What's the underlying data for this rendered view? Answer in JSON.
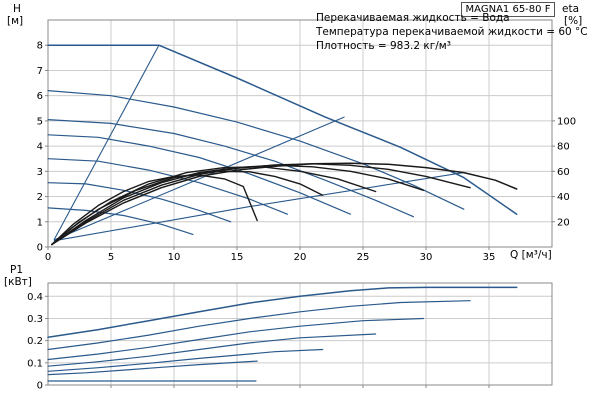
{
  "header": {
    "model_box": "MAGNA1 65-80 F",
    "annotations": [
      "Перекачиваемая жидкость = Вода",
      "Температура перекачиваемой жидкости = 60 °C",
      "Плотность = 983.2 кг/м³"
    ]
  },
  "axes_labels": {
    "h_symbol": "H",
    "h_unit": "[м]",
    "eta_symbol": "eta",
    "eta_unit": "[%]",
    "q_label": "Q [м³/ч]",
    "p1_symbol": "P1",
    "p1_unit": "[кВт]"
  },
  "colors": {
    "curve_blue": "#2a5a8c",
    "curve_black": "#1a1a1a",
    "grid": "#cccccc",
    "axis": "#888888",
    "text": "#000000"
  },
  "chart_data": [
    {
      "id": "qh-chart",
      "type": "line",
      "xlabel": "Q [м³/ч]",
      "ylabel": "H [м]",
      "y2label": "eta [%]",
      "xlim": [
        0,
        40
      ],
      "ylim": [
        0,
        9
      ],
      "grid": true,
      "xticks": [
        {
          "v": 0,
          "label": "0"
        },
        {
          "v": 5,
          "label": "5"
        },
        {
          "v": 10,
          "label": "10"
        },
        {
          "v": 15,
          "label": "15"
        },
        {
          "v": 20,
          "label": "20"
        },
        {
          "v": 25,
          "label": "25"
        },
        {
          "v": 30,
          "label": "30"
        },
        {
          "v": 35,
          "label": "35"
        }
      ],
      "yticks": [
        {
          "v": 0,
          "label": "0"
        },
        {
          "v": 1,
          "label": "1"
        },
        {
          "v": 2,
          "label": "2"
        },
        {
          "v": 3,
          "label": "3"
        },
        {
          "v": 4,
          "label": "4"
        },
        {
          "v": 5,
          "label": "5"
        },
        {
          "v": 6,
          "label": "6"
        },
        {
          "v": 7,
          "label": "7"
        },
        {
          "v": 8,
          "label": "8"
        }
      ],
      "y2ticks": [
        {
          "v": 5,
          "label": "100"
        },
        {
          "v": 4,
          "label": "80"
        },
        {
          "v": 3,
          "label": "60"
        },
        {
          "v": 2,
          "label": "40"
        },
        {
          "v": 1,
          "label": "20"
        }
      ],
      "series": [
        {
          "name": "max-curve",
          "color": "blue",
          "width": 1.5,
          "points": [
            [
              0,
              8
            ],
            [
              8.8,
              8
            ],
            [
              15,
              6.7
            ],
            [
              22,
              5.15
            ],
            [
              28,
              3.95
            ],
            [
              33,
              2.75
            ],
            [
              37.2,
              1.3
            ]
          ]
        },
        {
          "name": "speed-curve-1",
          "color": "blue",
          "width": 1.2,
          "points": [
            [
              0,
              6.2
            ],
            [
              5,
              6.0
            ],
            [
              10,
              5.55
            ],
            [
              15,
              4.95
            ],
            [
              20,
              4.2
            ],
            [
              25,
              3.3
            ],
            [
              29,
              2.45
            ],
            [
              33,
              1.5
            ]
          ]
        },
        {
          "name": "speed-curve-2",
          "color": "blue",
          "width": 1.2,
          "points": [
            [
              0,
              5.05
            ],
            [
              5,
              4.9
            ],
            [
              10,
              4.5
            ],
            [
              14,
              4.0
            ],
            [
              18,
              3.4
            ],
            [
              22,
              2.65
            ],
            [
              26,
              1.85
            ],
            [
              29,
              1.2
            ]
          ]
        },
        {
          "name": "speed-curve-3",
          "color": "blue",
          "width": 1.2,
          "points": [
            [
              0,
              4.45
            ],
            [
              4,
              4.35
            ],
            [
              8,
              4.0
            ],
            [
              12,
              3.55
            ],
            [
              16,
              2.9
            ],
            [
              20,
              2.15
            ],
            [
              24,
              1.3
            ]
          ]
        },
        {
          "name": "speed-curve-4",
          "color": "blue",
          "width": 1.2,
          "points": [
            [
              0,
              3.5
            ],
            [
              4,
              3.4
            ],
            [
              8,
              3.05
            ],
            [
              12,
              2.55
            ],
            [
              16,
              1.9
            ],
            [
              19,
              1.3
            ]
          ]
        },
        {
          "name": "speed-curve-5",
          "color": "blue",
          "width": 1.2,
          "points": [
            [
              0,
              2.55
            ],
            [
              3,
              2.5
            ],
            [
              6,
              2.25
            ],
            [
              9,
              1.9
            ],
            [
              12,
              1.45
            ],
            [
              14.5,
              1.0
            ]
          ]
        },
        {
          "name": "speed-curve-6",
          "color": "blue",
          "width": 1.2,
          "points": [
            [
              0,
              1.55
            ],
            [
              3,
              1.45
            ],
            [
              6,
              1.25
            ],
            [
              9,
              0.9
            ],
            [
              11.5,
              0.5
            ]
          ]
        },
        {
          "name": "rise-line-1",
          "color": "blue",
          "width": 1.1,
          "points": [
            [
              0.5,
              0.3
            ],
            [
              8.8,
              8
            ]
          ]
        },
        {
          "name": "rise-line-2",
          "color": "blue",
          "width": 1.1,
          "points": [
            [
              0.5,
              0.28
            ],
            [
              12,
              2.7
            ],
            [
              23.5,
              5.15
            ]
          ]
        },
        {
          "name": "rise-line-3",
          "color": "blue",
          "width": 1.1,
          "points": [
            [
              0.5,
              0.25
            ],
            [
              16,
              1.6
            ],
            [
              33,
              2.95
            ]
          ]
        },
        {
          "name": "eta-curve-max",
          "color": "black",
          "width": 1.5,
          "points": [
            [
              0.3,
              0.1
            ],
            [
              3,
              0.95
            ],
            [
              6,
              1.75
            ],
            [
              9,
              2.35
            ],
            [
              12,
              2.8
            ],
            [
              15,
              3.05
            ],
            [
              18,
              3.2
            ],
            [
              21,
              3.3
            ],
            [
              24,
              3.32
            ],
            [
              27,
              3.28
            ],
            [
              30,
              3.15
            ],
            [
              33,
              2.95
            ],
            [
              35.5,
              2.65
            ],
            [
              37.2,
              2.3
            ]
          ]
        },
        {
          "name": "eta-curve-2",
          "color": "black",
          "width": 1.4,
          "points": [
            [
              0.3,
              0.1
            ],
            [
              3,
              1.0
            ],
            [
              6,
              1.85
            ],
            [
              9,
              2.45
            ],
            [
              12,
              2.88
            ],
            [
              15,
              3.12
            ],
            [
              18,
              3.25
            ],
            [
              21,
              3.3
            ],
            [
              24,
              3.24
            ],
            [
              27,
              3.08
            ],
            [
              30,
              2.8
            ],
            [
              33.5,
              2.35
            ]
          ]
        },
        {
          "name": "eta-curve-3",
          "color": "black",
          "width": 1.4,
          "points": [
            [
              0.3,
              0.1
            ],
            [
              3,
              1.05
            ],
            [
              6,
              1.95
            ],
            [
              9,
              2.55
            ],
            [
              12,
              2.95
            ],
            [
              15,
              3.15
            ],
            [
              18,
              3.24
            ],
            [
              21,
              3.18
            ],
            [
              24,
              3.0
            ],
            [
              27,
              2.7
            ],
            [
              29.8,
              2.25
            ]
          ]
        },
        {
          "name": "eta-curve-4",
          "color": "black",
          "width": 1.4,
          "points": [
            [
              0.3,
              0.1
            ],
            [
              2.5,
              1.0
            ],
            [
              5,
              1.8
            ],
            [
              8,
              2.5
            ],
            [
              11,
              2.95
            ],
            [
              14,
              3.15
            ],
            [
              17,
              3.18
            ],
            [
              20,
              3.0
            ],
            [
              23,
              2.7
            ],
            [
              26,
              2.2
            ]
          ]
        },
        {
          "name": "eta-curve-5",
          "color": "black",
          "width": 1.4,
          "points": [
            [
              0.3,
              0.1
            ],
            [
              2,
              0.8
            ],
            [
              4,
              1.5
            ],
            [
              7,
              2.25
            ],
            [
              10,
              2.75
            ],
            [
              13,
              3.0
            ],
            [
              16,
              2.98
            ],
            [
              18,
              2.8
            ],
            [
              20,
              2.5
            ],
            [
              21.8,
              2.05
            ]
          ]
        },
        {
          "name": "eta-curve-6",
          "color": "black",
          "width": 1.4,
          "points": [
            [
              0.3,
              0.1
            ],
            [
              2,
              0.9
            ],
            [
              4,
              1.65
            ],
            [
              6,
              2.2
            ],
            [
              8,
              2.6
            ],
            [
              10,
              2.8
            ],
            [
              12,
              2.85
            ],
            [
              14,
              2.7
            ],
            [
              15.5,
              2.4
            ],
            [
              16.6,
              1.05
            ]
          ]
        }
      ]
    },
    {
      "id": "power-chart",
      "type": "line",
      "xlabel": "",
      "ylabel": "P1 [кВт]",
      "xlim": [
        0,
        40
      ],
      "ylim": [
        0,
        0.46
      ],
      "grid": true,
      "xticks": [
        {
          "v": 5,
          "label": ""
        },
        {
          "v": 10,
          "label": ""
        },
        {
          "v": 15,
          "label": ""
        },
        {
          "v": 20,
          "label": ""
        },
        {
          "v": 25,
          "label": ""
        },
        {
          "v": 30,
          "label": ""
        },
        {
          "v": 35,
          "label": ""
        }
      ],
      "yticks": [
        {
          "v": 0,
          "label": "0"
        },
        {
          "v": 0.1,
          "label": "0.1"
        },
        {
          "v": 0.2,
          "label": "0.2"
        },
        {
          "v": 0.3,
          "label": "0.3"
        },
        {
          "v": 0.4,
          "label": "0.4"
        }
      ],
      "y2ticks": [],
      "series": [
        {
          "name": "power-max",
          "color": "blue",
          "width": 1.5,
          "points": [
            [
              0,
              0.215
            ],
            [
              4,
              0.25
            ],
            [
              8,
              0.29
            ],
            [
              12,
              0.33
            ],
            [
              16,
              0.37
            ],
            [
              20,
              0.4
            ],
            [
              24,
              0.425
            ],
            [
              27,
              0.438
            ],
            [
              30,
              0.44
            ],
            [
              37.2,
              0.44
            ]
          ]
        },
        {
          "name": "power-2",
          "color": "blue",
          "width": 1.2,
          "points": [
            [
              0,
              0.16
            ],
            [
              4,
              0.19
            ],
            [
              8,
              0.225
            ],
            [
              12,
              0.265
            ],
            [
              16,
              0.3
            ],
            [
              20,
              0.33
            ],
            [
              24,
              0.355
            ],
            [
              28,
              0.372
            ],
            [
              33.5,
              0.38
            ]
          ]
        },
        {
          "name": "power-3",
          "color": "blue",
          "width": 1.2,
          "points": [
            [
              0,
              0.115
            ],
            [
              4,
              0.14
            ],
            [
              8,
              0.17
            ],
            [
              12,
              0.205
            ],
            [
              16,
              0.24
            ],
            [
              20,
              0.265
            ],
            [
              25,
              0.29
            ],
            [
              29.8,
              0.3
            ]
          ]
        },
        {
          "name": "power-4",
          "color": "blue",
          "width": 1.2,
          "points": [
            [
              0,
              0.085
            ],
            [
              4,
              0.105
            ],
            [
              8,
              0.13
            ],
            [
              12,
              0.16
            ],
            [
              16,
              0.19
            ],
            [
              20,
              0.213
            ],
            [
              26,
              0.23
            ]
          ]
        },
        {
          "name": "power-5",
          "color": "blue",
          "width": 1.2,
          "points": [
            [
              0,
              0.062
            ],
            [
              4,
              0.078
            ],
            [
              8,
              0.098
            ],
            [
              12,
              0.12
            ],
            [
              15,
              0.135
            ],
            [
              18,
              0.15
            ],
            [
              21.8,
              0.16
            ]
          ]
        },
        {
          "name": "power-6",
          "color": "blue",
          "width": 1.2,
          "points": [
            [
              0,
              0.047
            ],
            [
              3,
              0.055
            ],
            [
              6,
              0.067
            ],
            [
              9,
              0.08
            ],
            [
              12,
              0.092
            ],
            [
              16.6,
              0.108
            ]
          ]
        },
        {
          "name": "power-min-line",
          "color": "blue",
          "width": 1.2,
          "points": [
            [
              0,
              0.018
            ],
            [
              16.5,
              0.018
            ]
          ]
        }
      ]
    }
  ]
}
